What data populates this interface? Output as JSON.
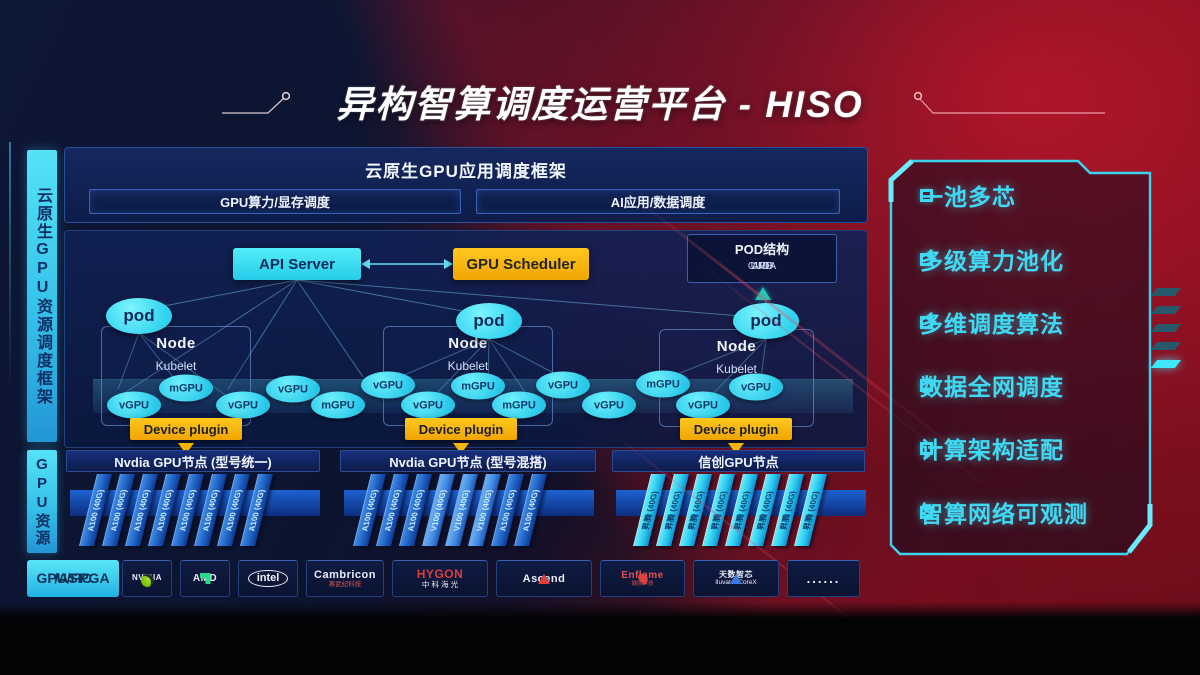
{
  "page": {
    "title": "异构智算调度运营平台 - HISO"
  },
  "left_rails": [
    {
      "label": "云原生GPU资源调度框架"
    },
    {
      "label": "GPU资源"
    }
  ],
  "app_frame": {
    "title": "云原生GPU应用调度框架",
    "lanes": [
      "GPU算力/显存调度",
      "AI应用/数据调度"
    ]
  },
  "control": {
    "api_server": "API Server",
    "gpu_scheduler": "GPU Scheduler",
    "pod_box": {
      "title": "POD结构",
      "layers": [
        "APP",
        "CUDA",
        "UMD"
      ]
    }
  },
  "cluster": {
    "nodes": [
      {
        "pod": "pod",
        "name": "Node",
        "agent": "Kubelet",
        "plugin": "Device plugin"
      },
      {
        "pod": "pod",
        "name": "Node",
        "agent": "Kubelet",
        "plugin": "Device plugin"
      },
      {
        "pod": "pod",
        "name": "Node",
        "agent": "Kubelet",
        "plugin": "Device plugin"
      }
    ],
    "gpu_instances": [
      "vGPU",
      "mGPU",
      "vGPU",
      "vGPU",
      "mGPU",
      "vGPU",
      "vGPU",
      "mGPU",
      "mGPU",
      "vGPU",
      "vGPU",
      "mGPU",
      "vGPU",
      "vGPU"
    ]
  },
  "gpu_groups": [
    {
      "header": "Nvdia GPU节点 (型号统一)",
      "cards": [
        "A100 (40G)",
        "A100 (40G)",
        "A100 (40G)",
        "A100 (40G)",
        "A100 (40G)",
        "A100 (40G)",
        "A100 (40G)",
        "A100 (40G)"
      ]
    },
    {
      "header": "Nvdia GPU节点 (型号混搭)",
      "cards": [
        "A100 (40G)",
        "A100 (40G)",
        "A100 (40G)",
        "V100 (40G)",
        "V100 (40G)",
        "V100 (40G)",
        "A100 (40G)",
        "A100 (40G)"
      ]
    },
    {
      "header": "信创GPU节点",
      "cards": [
        "昇腾 (40G)",
        "昇腾 (40G)",
        "昇腾 (40G)",
        "昇腾 (40G)",
        "昇腾 (40G)",
        "昇腾 (40G)",
        "昇腾 (40G)",
        "昇腾 (40G)"
      ]
    }
  ],
  "hardware": {
    "label_line1": "GPU/FPGA",
    "label_line2": "/ASIC",
    "vendors": [
      {
        "id": "nvidia",
        "name": "NVIDIA"
      },
      {
        "id": "amd",
        "name": "AMD"
      },
      {
        "id": "intel",
        "name": "intel"
      },
      {
        "id": "cambricon",
        "name": "Cambricon",
        "sub": "寒武纪科技"
      },
      {
        "id": "hygon",
        "name": "HYGON",
        "sub": "中 科 海 光"
      },
      {
        "id": "ascend",
        "name": "Ascend"
      },
      {
        "id": "enflame",
        "name": "Enflame",
        "sub": "燧原科技"
      },
      {
        "id": "iluvatar",
        "name": "天数智芯",
        "sub": "Iluvatar CoreX"
      },
      {
        "id": "more",
        "name": "......"
      }
    ]
  },
  "features": [
    "一池多芯",
    "多级算力池化",
    "多维调度算法",
    "数据全网调度",
    "计算架构适配",
    "智算网络可观测"
  ],
  "colors": {
    "accent_cyan": "#41d9f2",
    "accent_yellow": "#f5b400",
    "card_blue": "#1b5cbe",
    "card_cyan": "#28c4ec",
    "bg_red": "#6e0d1c",
    "bg_navy": "#0c1530"
  }
}
